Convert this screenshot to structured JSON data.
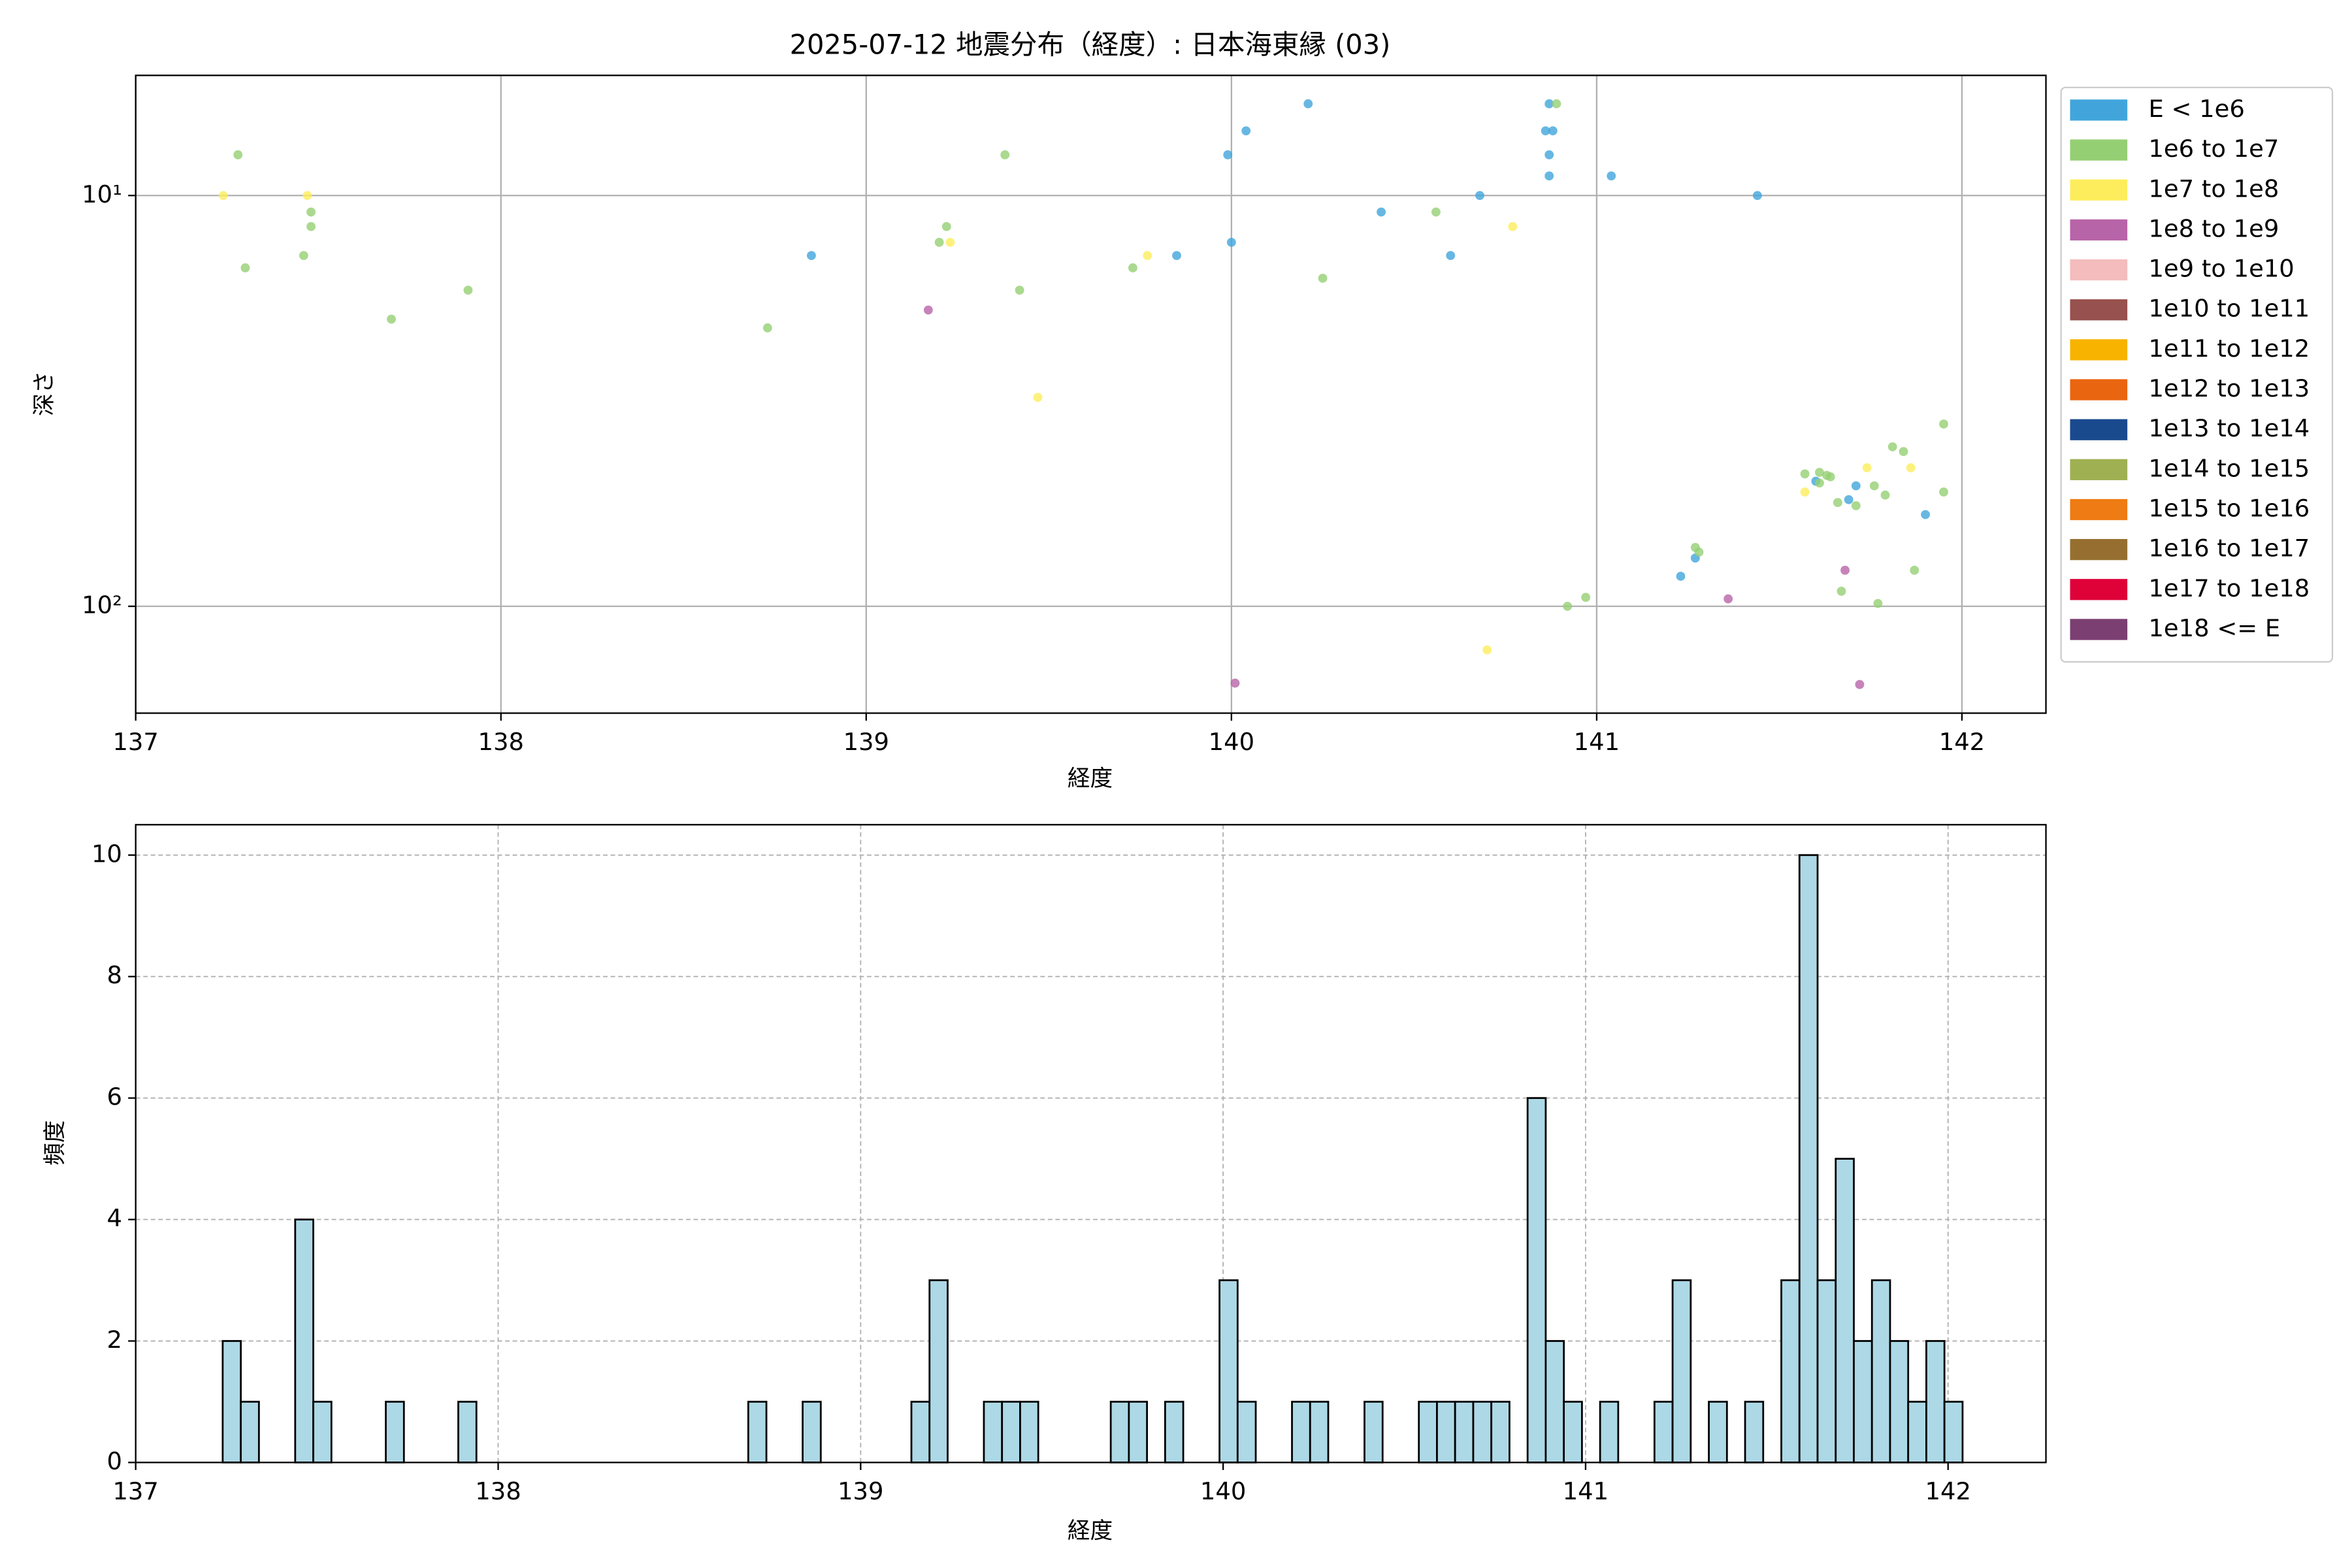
{
  "chart_data": [
    {
      "type": "scatter",
      "title": "2025-07-12 地震分布（経度）: 日本海東縁 (03)",
      "xlabel": "経度",
      "ylabel": "深さ",
      "xlim": [
        137,
        142.23
      ],
      "xticks": [
        137,
        138,
        139,
        140,
        141,
        142
      ],
      "ylim": [
        182,
        5.1
      ],
      "yscale": "log",
      "yticks": [
        {
          "value": 10,
          "label": "10¹"
        },
        {
          "value": 100,
          "label": "10²"
        }
      ],
      "grid": true,
      "legend": "outside-upper-right",
      "series": [
        {
          "name": "E < 1e6",
          "color": "#41a5dc",
          "x": [
            138.85,
            139.85,
            139.99,
            140.04,
            140.0,
            140.21,
            140.41,
            140.6,
            140.68,
            140.86,
            140.88,
            140.87,
            140.87,
            140.87,
            141.04,
            141.44,
            141.23,
            141.27,
            141.6,
            141.71,
            141.69,
            141.9
          ],
          "values": [
            14.0,
            14.0,
            7.96,
            6.96,
            13.0,
            5.98,
            10.97,
            14.0,
            10,
            6.96,
            6.96,
            5.98,
            7.96,
            8.96,
            8.96,
            10,
            84.5,
            76.3,
            49.6,
            50.9,
            55.0,
            59.8
          ]
        },
        {
          "name": "1e6 to 1e7",
          "color": "#95cf73",
          "x": [
            137.28,
            137.3,
            137.46,
            137.48,
            137.48,
            137.7,
            137.91,
            138.73,
            139.2,
            139.22,
            139.38,
            139.42,
            139.73,
            140.25,
            140.56,
            140.89,
            140.92,
            140.97,
            141.27,
            141.28,
            141.57,
            141.61,
            141.63,
            141.64,
            141.61,
            141.66,
            141.71,
            141.76,
            141.79,
            141.81,
            141.84,
            141.95,
            141.95,
            141.67,
            141.77,
            141.87
          ],
          "values": [
            7.96,
            15.0,
            14.0,
            11.9,
            10.97,
            20.0,
            17.0,
            21.0,
            13.0,
            11.9,
            7.96,
            17.0,
            15.0,
            15.9,
            10.97,
            5.98,
            100,
            95.1,
            71.9,
            73.8,
            47.6,
            47.2,
            48.0,
            48.4,
            50.1,
            55.9,
            56.9,
            50.9,
            53.6,
            40.9,
            42.0,
            36.0,
            52.7,
            91.9,
            98.4,
            81.7
          ]
        },
        {
          "name": "1e7 to 1e8",
          "color": "#fded5d",
          "x": [
            137.24,
            137.47,
            139.23,
            139.47,
            139.77,
            140.77,
            140.7,
            141.57,
            141.74,
            141.86
          ],
          "values": [
            10,
            10,
            13.0,
            31.0,
            14.0,
            11.9,
            127.7,
            52.7,
            46.0,
            46.0
          ]
        },
        {
          "name": "1e8 to 1e9",
          "color": "#b864a8",
          "x": [
            139.17,
            140.01,
            141.36,
            141.68,
            141.72
          ],
          "values": [
            19.0,
            153.8,
            95.9,
            81.7,
            155
          ]
        },
        {
          "name": "1e9 to 1e10",
          "color": "#f4bcbc",
          "x": [],
          "values": []
        },
        {
          "name": "1e10 to 1e11",
          "color": "#97514e",
          "x": [],
          "values": []
        },
        {
          "name": "1e11 to 1e12",
          "color": "#f7b300",
          "x": [],
          "values": []
        },
        {
          "name": "1e12 to 1e13",
          "color": "#ea6510",
          "x": [],
          "values": []
        },
        {
          "name": "1e13 to 1e14",
          "color": "#1a4a8e",
          "x": [],
          "values": []
        },
        {
          "name": "1e14 to 1e15",
          "color": "#9fb052",
          "x": [],
          "values": []
        },
        {
          "name": "1e15 to 1e16",
          "color": "#ee7b13",
          "x": [],
          "values": []
        },
        {
          "name": "1e16 to 1e17",
          "color": "#966f30",
          "x": [],
          "values": []
        },
        {
          "name": "1e17 to 1e18",
          "color": "#de0239",
          "x": [],
          "values": []
        },
        {
          "name": "1e18 <= E",
          "color": "#7b3f72",
          "x": [],
          "values": []
        }
      ]
    },
    {
      "type": "histogram",
      "xlabel": "経度",
      "ylabel": "頻度",
      "color": "#add8e6",
      "edgecolor": "#000000",
      "xlim": [
        137,
        142.27
      ],
      "xticks": [
        137,
        138,
        139,
        140,
        141,
        142
      ],
      "ylim": [
        0,
        10.5
      ],
      "yticks": [
        0,
        2,
        4,
        6,
        8,
        10
      ],
      "grid": true,
      "bins": [
        137.24,
        137.29,
        137.34,
        137.39,
        137.44,
        137.49,
        137.54,
        137.59,
        137.64,
        137.69,
        137.74,
        137.79,
        137.84,
        137.89,
        137.94,
        137.99,
        138.04,
        138.09,
        138.14,
        138.19,
        138.24,
        138.29,
        138.34,
        138.39,
        138.44,
        138.49,
        138.54,
        138.59,
        138.64,
        138.69,
        138.74,
        138.79,
        138.84,
        138.89,
        138.94,
        138.99,
        139.04,
        139.09,
        139.14,
        139.19,
        139.24,
        139.29,
        139.34,
        139.39,
        139.44,
        139.49,
        139.54,
        139.59,
        139.64,
        139.69,
        139.74,
        139.79,
        139.84,
        139.89,
        139.94,
        139.99,
        140.04,
        140.09,
        140.14,
        140.19,
        140.24,
        140.29,
        140.34,
        140.39,
        140.44,
        140.49,
        140.54,
        140.59,
        140.64,
        140.69,
        140.74,
        140.79,
        140.84,
        140.89,
        140.94,
        140.99,
        141.04,
        141.09,
        141.14,
        141.19,
        141.24,
        141.29,
        141.34,
        141.39,
        141.44,
        141.49,
        141.54,
        141.59,
        141.64,
        141.69,
        141.74,
        141.79,
        141.84,
        141.89,
        141.94,
        141.99,
        142.04
      ],
      "values": [
        2,
        1,
        0,
        0,
        4,
        1,
        0,
        0,
        0,
        1,
        0,
        0,
        0,
        1,
        0,
        0,
        0,
        0,
        0,
        0,
        0,
        0,
        0,
        0,
        0,
        0,
        0,
        0,
        0,
        1,
        0,
        0,
        1,
        0,
        0,
        0,
        0,
        0,
        1,
        3,
        0,
        0,
        1,
        1,
        1,
        0,
        0,
        0,
        0,
        1,
        1,
        0,
        1,
        0,
        0,
        3,
        1,
        0,
        0,
        1,
        1,
        0,
        0,
        1,
        0,
        0,
        1,
        1,
        1,
        1,
        1,
        0,
        6,
        2,
        1,
        0,
        1,
        0,
        0,
        1,
        3,
        0,
        1,
        0,
        1,
        0,
        3,
        10,
        3,
        5,
        2,
        3,
        2,
        1,
        2,
        1
      ]
    }
  ]
}
